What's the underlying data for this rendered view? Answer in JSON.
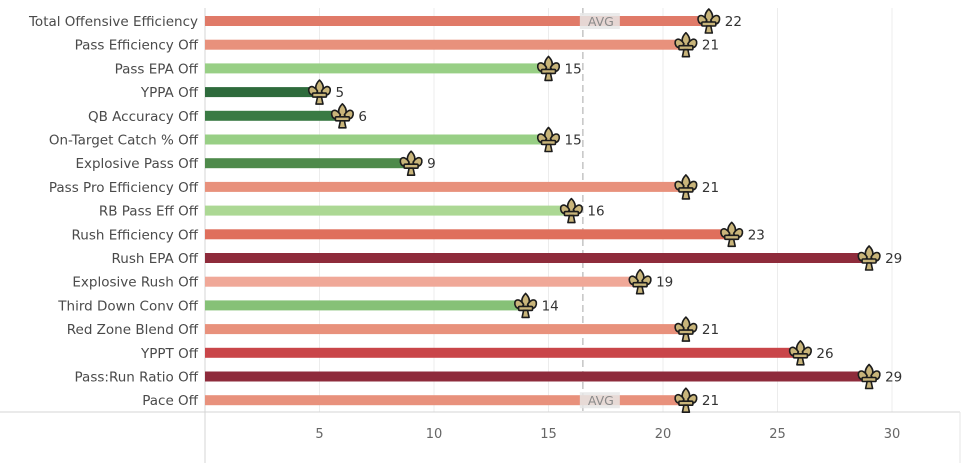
{
  "chart_data": {
    "type": "bar",
    "orientation": "horizontal",
    "categories": [
      "Total Offensive Efficiency",
      "Pass Efficiency Off",
      "Pass EPA Off",
      "YPPA Off",
      "QB Accuracy Off",
      "On-Target Catch % Off",
      "Explosive Pass Off",
      "Pass Pro Efficiency Off",
      "RB Pass Eff Off",
      "Rush Efficiency Off",
      "Rush EPA Off",
      "Explosive Rush Off",
      "Third Down Conv Off",
      "Red Zone Blend Off",
      "YPPT Off",
      "Pass:Run Ratio Off",
      "Pace Off"
    ],
    "values": [
      22,
      21,
      15,
      5,
      6,
      15,
      9,
      21,
      16,
      23,
      29,
      19,
      14,
      21,
      26,
      29,
      21
    ],
    "bar_colors": [
      "#e07a68",
      "#e8917c",
      "#98cf85",
      "#2e6b3c",
      "#3a7a44",
      "#98cf85",
      "#4e8a4b",
      "#e8917c",
      "#acd894",
      "#df6f5c",
      "#8e2b3b",
      "#f0a898",
      "#86c177",
      "#e8917c",
      "#c94549",
      "#8e2b3b",
      "#e8917c"
    ],
    "reference_line": {
      "label": "AVG",
      "value": 16.5
    },
    "x_ticks": [
      5,
      10,
      15,
      20,
      25,
      30
    ],
    "xlim": [
      0,
      32.5
    ],
    "grid": "vertical",
    "marker": "fleur-de-lis-icon"
  }
}
